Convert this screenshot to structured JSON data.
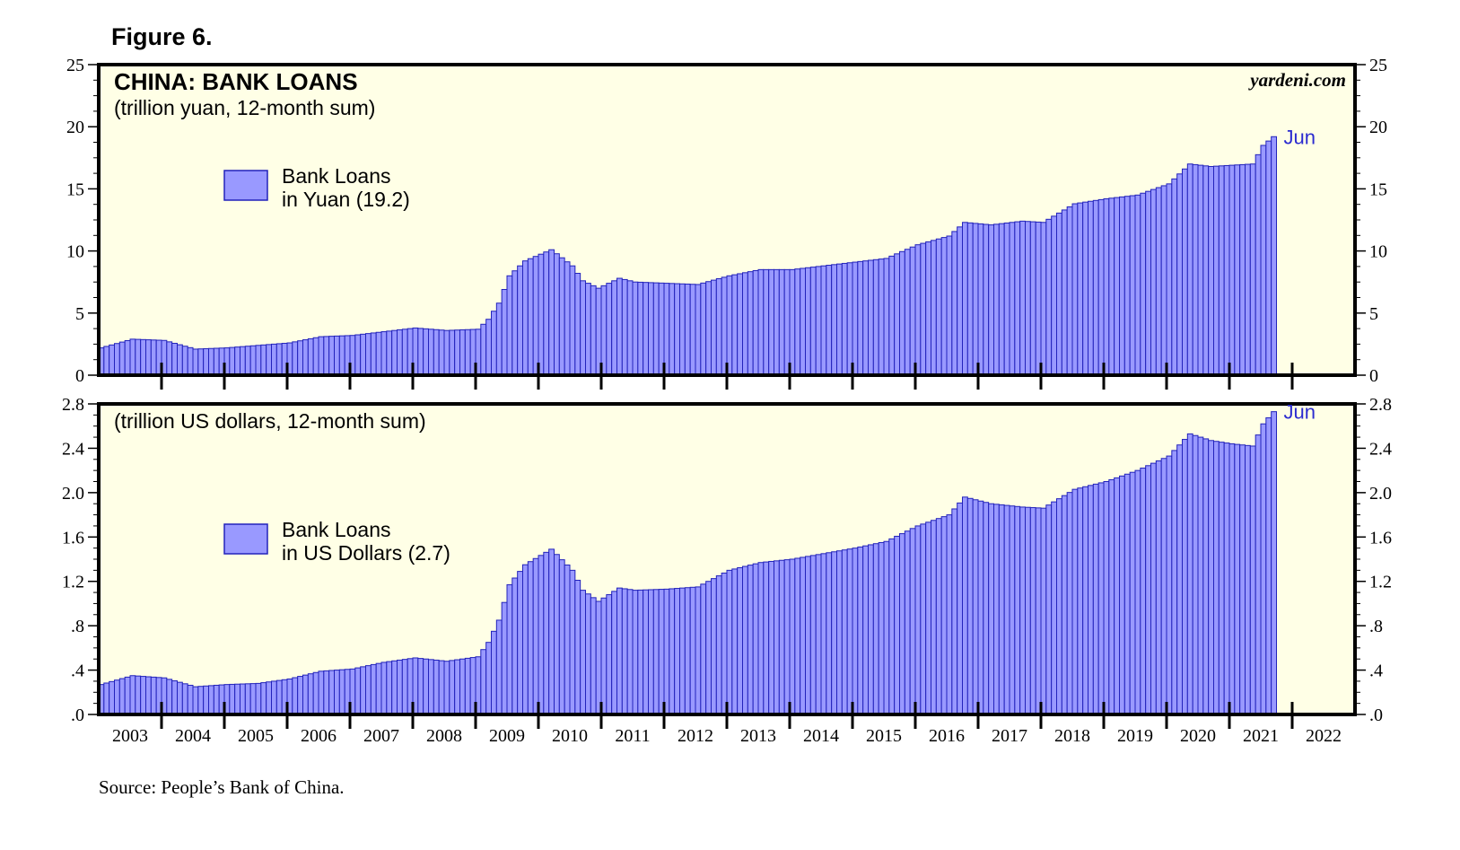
{
  "figure_label": "Figure 6.",
  "source": "Source: People’s Bank of China.",
  "colors": {
    "bar_fill": "#9999ff",
    "bar_stroke": "#2222bb",
    "plot_bg": "#ffffe6",
    "label_blue": "#2a2ad0"
  },
  "chart_data": [
    {
      "type": "bar",
      "title": "CHINA: BANK LOANS",
      "subtitle": "(trillion yuan, 12-month sum)",
      "watermark": "yardeni.com",
      "end_label": "Jun",
      "legend": {
        "line1": "Bank Loans",
        "line2": "in Yuan (19.2)"
      },
      "ylim": [
        0,
        25
      ],
      "yticks": [
        "0",
        "5",
        "10",
        "15",
        "20",
        "25"
      ],
      "ytick_values": [
        0,
        5,
        10,
        15,
        20,
        25
      ],
      "start": "2003-01",
      "frequency": "monthly",
      "knots": [
        [
          0,
          2.2
        ],
        [
          6,
          2.9
        ],
        [
          12,
          2.8
        ],
        [
          18,
          2.1
        ],
        [
          24,
          2.2
        ],
        [
          30,
          2.4
        ],
        [
          36,
          2.6
        ],
        [
          42,
          3.1
        ],
        [
          48,
          3.2
        ],
        [
          54,
          3.5
        ],
        [
          60,
          3.8
        ],
        [
          66,
          3.6
        ],
        [
          72,
          3.7
        ],
        [
          74,
          4.5
        ],
        [
          76,
          5.8
        ],
        [
          78,
          8.0
        ],
        [
          81,
          9.2
        ],
        [
          86,
          10.1
        ],
        [
          90,
          8.8
        ],
        [
          92,
          7.6
        ],
        [
          95,
          7.0
        ],
        [
          99,
          7.8
        ],
        [
          102,
          7.5
        ],
        [
          108,
          7.4
        ],
        [
          114,
          7.3
        ],
        [
          120,
          8.0
        ],
        [
          126,
          8.5
        ],
        [
          132,
          8.5
        ],
        [
          138,
          8.8
        ],
        [
          144,
          9.1
        ],
        [
          150,
          9.4
        ],
        [
          156,
          10.5
        ],
        [
          162,
          11.2
        ],
        [
          165,
          12.3
        ],
        [
          170,
          12.1
        ],
        [
          176,
          12.4
        ],
        [
          180,
          12.3
        ],
        [
          186,
          13.8
        ],
        [
          192,
          14.2
        ],
        [
          198,
          14.5
        ],
        [
          204,
          15.4
        ],
        [
          208,
          17.0
        ],
        [
          212,
          16.8
        ],
        [
          216,
          16.9
        ],
        [
          220,
          17.0
        ],
        [
          222,
          18.5
        ],
        [
          224,
          19.2
        ]
      ],
      "x_years": [
        "2003",
        "2004",
        "2005",
        "2006",
        "2007",
        "2008",
        "2009",
        "2010",
        "2011",
        "2012",
        "2013",
        "2014",
        "2015",
        "2016",
        "2017",
        "2018",
        "2019",
        "2020",
        "2021",
        "2022"
      ]
    },
    {
      "type": "bar",
      "subtitle": "(trillion US dollars, 12-month sum)",
      "end_label": "Jun",
      "legend": {
        "line1": "Bank Loans",
        "line2": "in US Dollars (2.7)"
      },
      "ylim": [
        0,
        2.8
      ],
      "yticks": [
        ".0",
        ".4",
        ".8",
        "1.2",
        "1.6",
        "2.0",
        "2.4",
        "2.8"
      ],
      "ytick_values": [
        0,
        0.4,
        0.8,
        1.2,
        1.6,
        2.0,
        2.4,
        2.8
      ],
      "start": "2003-01",
      "frequency": "monthly",
      "knots": [
        [
          0,
          0.27
        ],
        [
          6,
          0.35
        ],
        [
          12,
          0.33
        ],
        [
          18,
          0.25
        ],
        [
          24,
          0.27
        ],
        [
          30,
          0.28
        ],
        [
          36,
          0.32
        ],
        [
          42,
          0.39
        ],
        [
          48,
          0.41
        ],
        [
          54,
          0.47
        ],
        [
          60,
          0.51
        ],
        [
          66,
          0.48
        ],
        [
          72,
          0.52
        ],
        [
          74,
          0.65
        ],
        [
          76,
          0.85
        ],
        [
          78,
          1.17
        ],
        [
          81,
          1.35
        ],
        [
          86,
          1.49
        ],
        [
          90,
          1.3
        ],
        [
          92,
          1.12
        ],
        [
          95,
          1.02
        ],
        [
          99,
          1.14
        ],
        [
          102,
          1.12
        ],
        [
          108,
          1.13
        ],
        [
          114,
          1.15
        ],
        [
          120,
          1.3
        ],
        [
          126,
          1.37
        ],
        [
          132,
          1.4
        ],
        [
          138,
          1.45
        ],
        [
          144,
          1.5
        ],
        [
          150,
          1.56
        ],
        [
          156,
          1.7
        ],
        [
          162,
          1.8
        ],
        [
          165,
          1.96
        ],
        [
          170,
          1.9
        ],
        [
          176,
          1.87
        ],
        [
          180,
          1.86
        ],
        [
          186,
          2.03
        ],
        [
          192,
          2.1
        ],
        [
          198,
          2.2
        ],
        [
          204,
          2.33
        ],
        [
          208,
          2.53
        ],
        [
          212,
          2.47
        ],
        [
          216,
          2.44
        ],
        [
          220,
          2.42
        ],
        [
          222,
          2.62
        ],
        [
          224,
          2.73
        ]
      ],
      "x_years": [
        "2003",
        "2004",
        "2005",
        "2006",
        "2007",
        "2008",
        "2009",
        "2010",
        "2011",
        "2012",
        "2013",
        "2014",
        "2015",
        "2016",
        "2017",
        "2018",
        "2019",
        "2020",
        "2021",
        "2022"
      ]
    }
  ]
}
